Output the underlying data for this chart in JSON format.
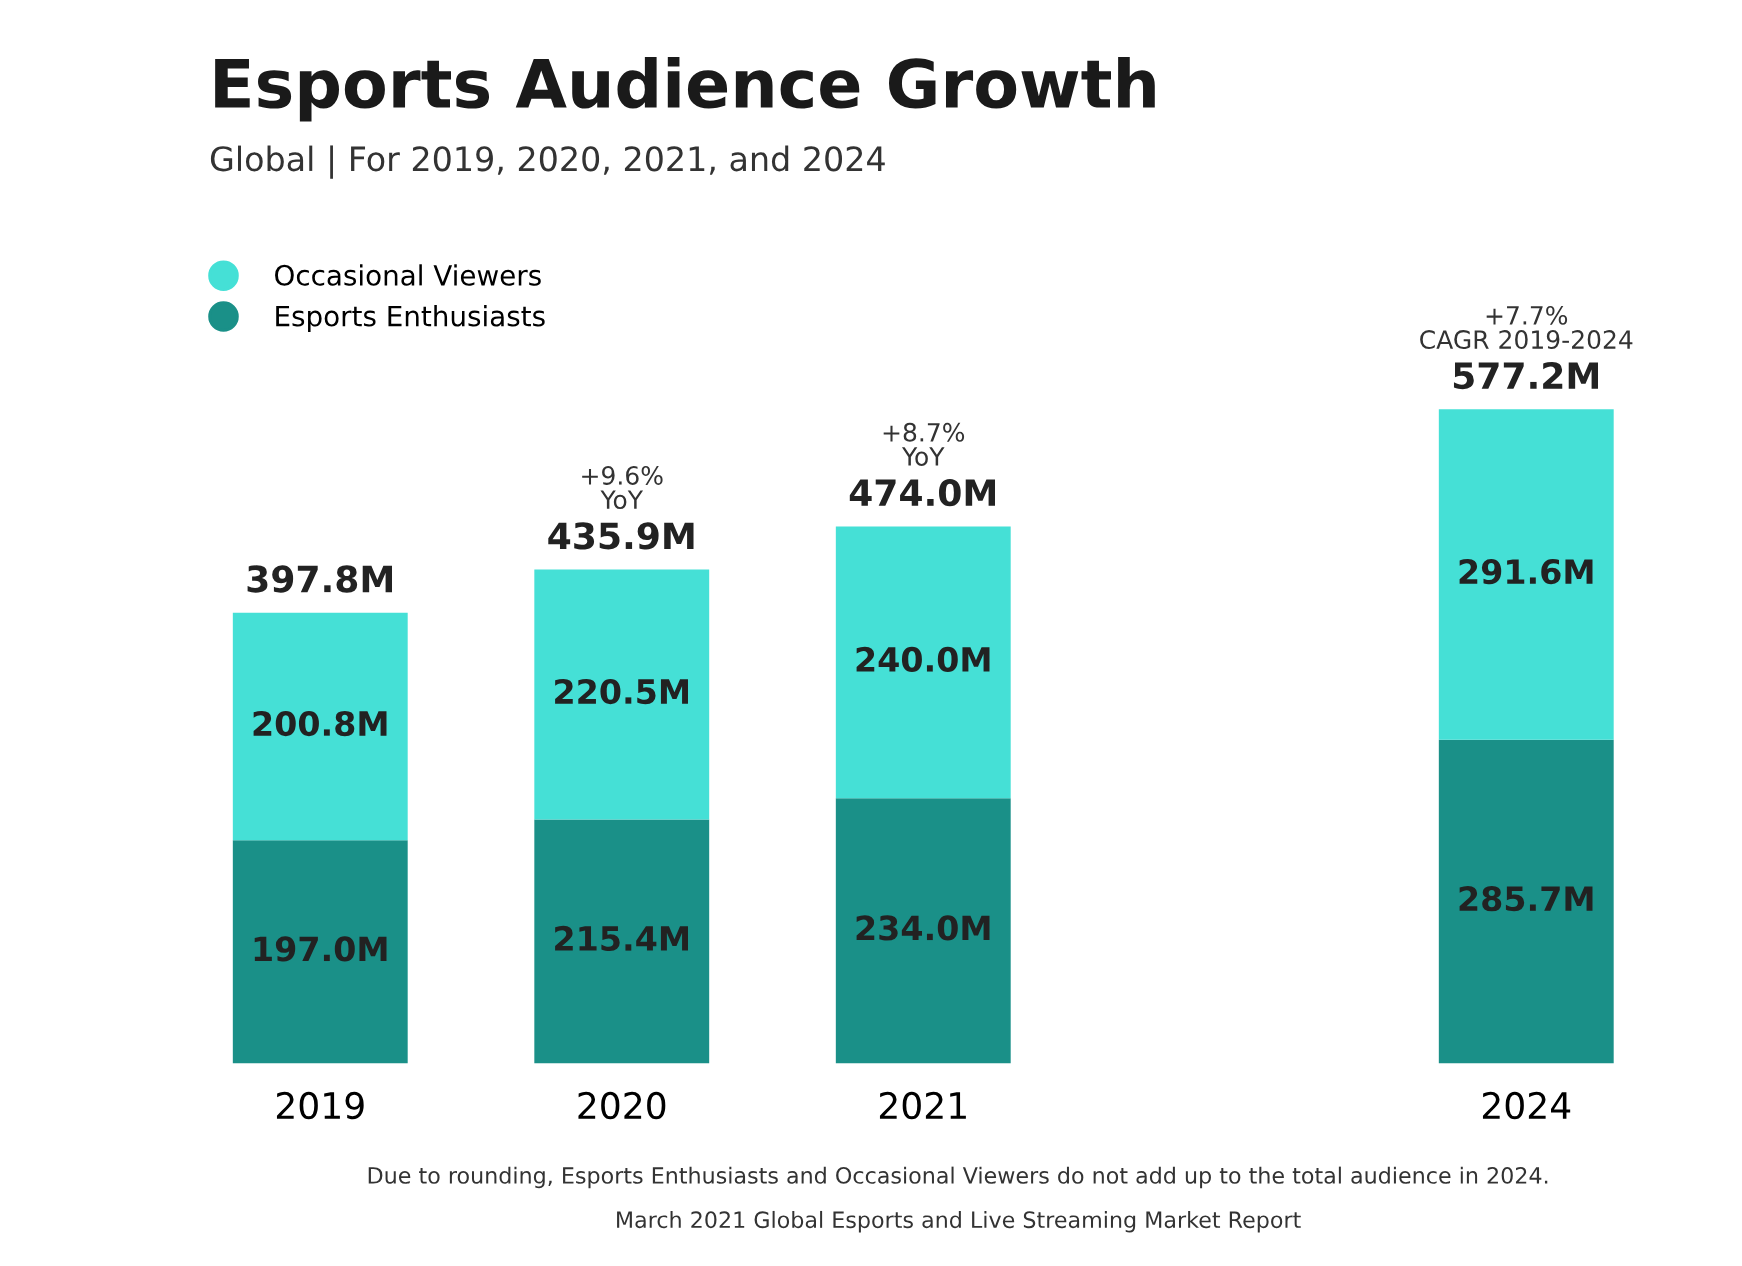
{
  "chart_data": {
    "type": "bar",
    "title": "Esports Audience Growth",
    "subtitle": "Global | For 2019, 2020, 2021, and 2024",
    "categories": [
      "2019",
      "2020",
      "2021",
      null,
      "2024"
    ],
    "stacked": true,
    "series": [
      {
        "name": "Esports Enthusiasts",
        "color": "#1a9088",
        "values": [
          197.0,
          215.4,
          234.0,
          null,
          285.7
        ],
        "value_labels": [
          "197.0M",
          "215.4M",
          "234.0M",
          null,
          "285.7M"
        ]
      },
      {
        "name": "Occasional Viewers",
        "color": "#45e0d6",
        "values": [
          200.8,
          220.5,
          240.0,
          null,
          291.6
        ],
        "value_labels": [
          "200.8M",
          "220.5M",
          "240.0M",
          null,
          "291.6M"
        ]
      }
    ],
    "totals": [
      "397.8M",
      "435.9M",
      "474.0M",
      null,
      "577.2M"
    ],
    "annotations": [
      {
        "text": "+9.6%\nYoY",
        "x": "2020",
        "y": 435.9
      },
      {
        "text": "+8.7%\nYoY",
        "x": "2021",
        "y": 474.0
      },
      {
        "text": "+7.7%\nCAGR 2019-2024",
        "x": "2024",
        "y": 577.2
      },
      "Due to rounding, Esports Enthusiasts and Occasional Viewers do not add up to the total audience in 2024.",
      "March 2021 Global Esports and Live Streaming Market Report"
    ],
    "legend": "top left",
    "grid": false,
    "tick_labels": "x"
  }
}
